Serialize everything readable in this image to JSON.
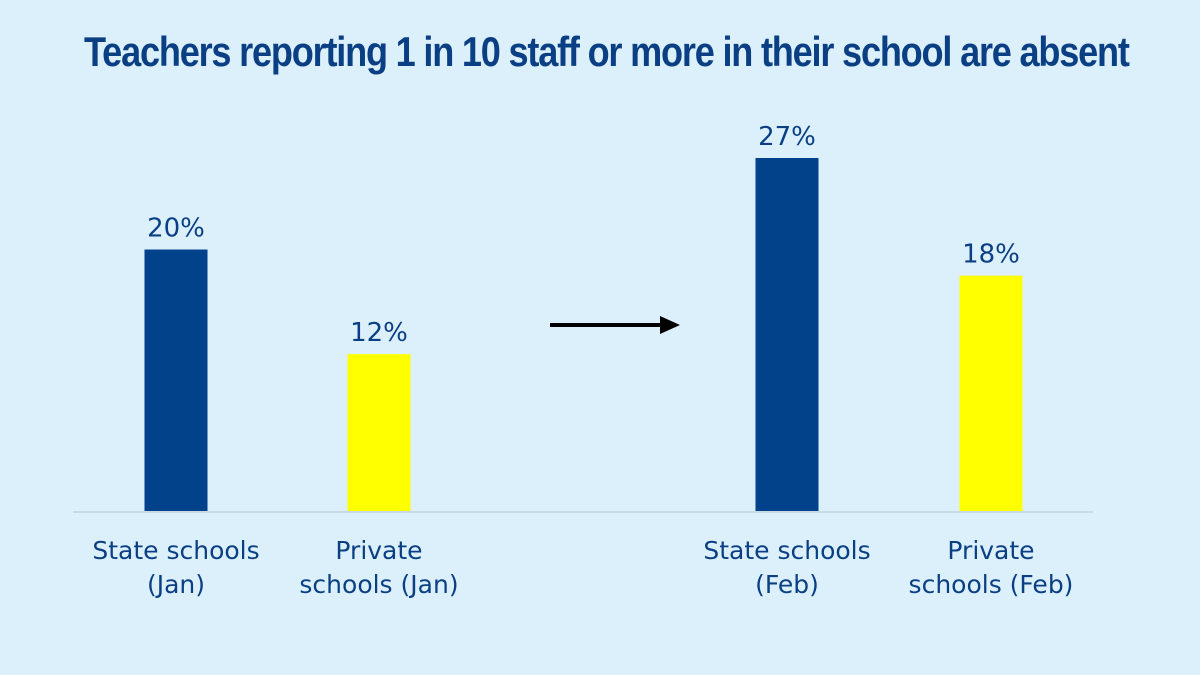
{
  "chart_data": {
    "type": "bar",
    "title": "Teachers reporting 1 in 10 staff or more in their school are absent",
    "xlabel": "",
    "ylabel": "",
    "ylim": [
      0,
      27
    ],
    "grid": false,
    "categories": [
      [
        "State schools",
        "(Jan)"
      ],
      [
        "Private",
        "schools (Jan)"
      ],
      [
        "State schools",
        "(Feb)"
      ],
      [
        "Private",
        "schools (Feb)"
      ]
    ],
    "values": [
      20,
      12,
      27,
      18
    ],
    "value_labels": [
      "20%",
      "12%",
      "27%",
      "18%"
    ],
    "colors": [
      "#02428a",
      "#ffff00",
      "#02428a",
      "#ffff00"
    ],
    "annotation": "arrow pointing right from January to February"
  }
}
